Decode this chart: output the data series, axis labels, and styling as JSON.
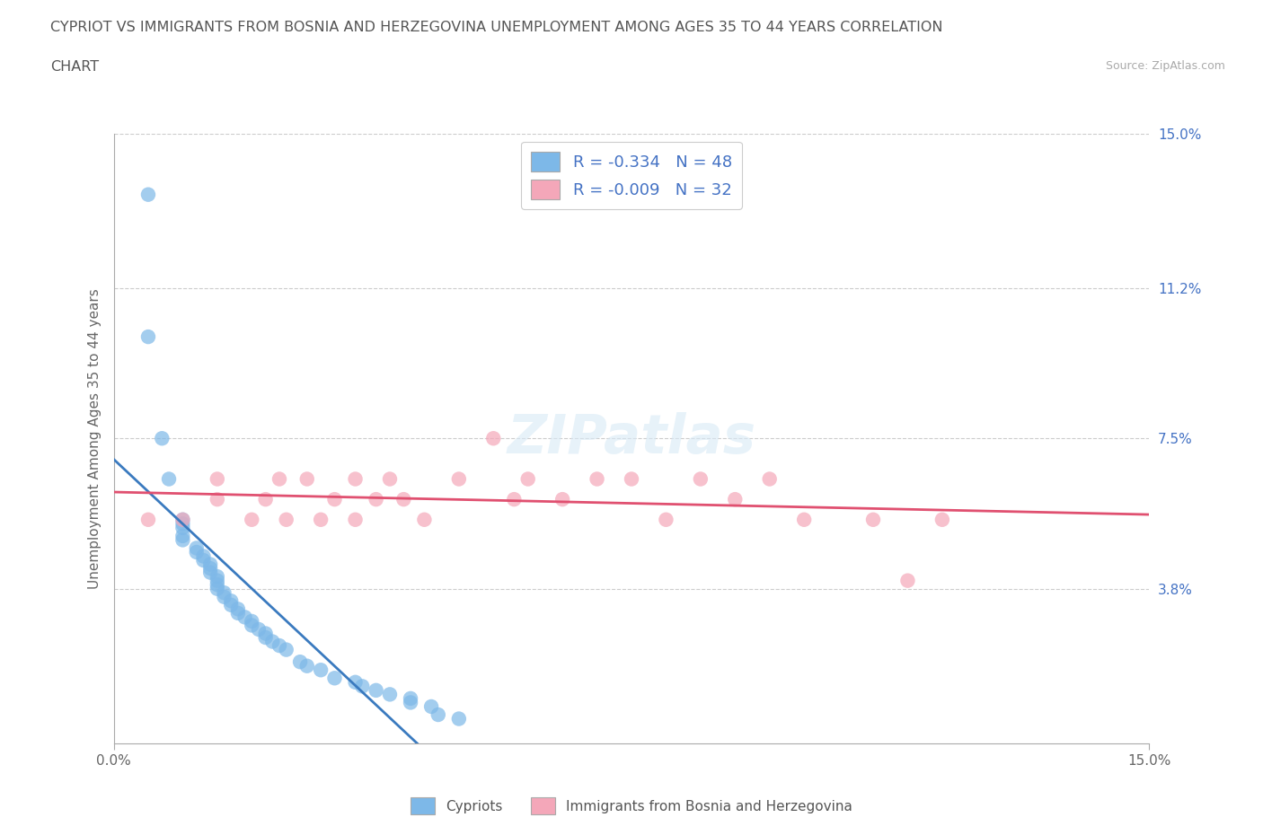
{
  "title_line1": "CYPRIOT VS IMMIGRANTS FROM BOSNIA AND HERZEGOVINA UNEMPLOYMENT AMONG AGES 35 TO 44 YEARS CORRELATION",
  "title_line2": "CHART",
  "source_text": "Source: ZipAtlas.com",
  "ylabel": "Unemployment Among Ages 35 to 44 years",
  "xlim": [
    0.0,
    0.15
  ],
  "ylim": [
    0.0,
    0.15
  ],
  "ytick_values_right": [
    0.038,
    0.075,
    0.112,
    0.15
  ],
  "ytick_labels_right": [
    "3.8%",
    "7.5%",
    "11.2%",
    "15.0%"
  ],
  "grid_color": "#cccccc",
  "background_color": "#ffffff",
  "cypriot_color": "#7db8e8",
  "bosnian_color": "#f4a7b9",
  "cypriot_line_color": "#3a7abf",
  "bosnian_line_color": "#e05070",
  "legend_label_cypriot": "R = -0.334   N = 48",
  "legend_label_bosnian": "R = -0.009   N = 32",
  "cypriot_scatter_x": [
    0.005,
    0.005,
    0.007,
    0.008,
    0.01,
    0.01,
    0.01,
    0.01,
    0.01,
    0.012,
    0.012,
    0.013,
    0.013,
    0.014,
    0.014,
    0.014,
    0.015,
    0.015,
    0.015,
    0.015,
    0.016,
    0.016,
    0.017,
    0.017,
    0.018,
    0.018,
    0.019,
    0.02,
    0.02,
    0.021,
    0.022,
    0.022,
    0.023,
    0.024,
    0.025,
    0.027,
    0.028,
    0.03,
    0.032,
    0.035,
    0.036,
    0.038,
    0.04,
    0.043,
    0.043,
    0.046,
    0.047,
    0.05
  ],
  "cypriot_scatter_y": [
    0.135,
    0.1,
    0.075,
    0.065,
    0.055,
    0.054,
    0.053,
    0.051,
    0.05,
    0.048,
    0.047,
    0.046,
    0.045,
    0.044,
    0.043,
    0.042,
    0.041,
    0.04,
    0.039,
    0.038,
    0.037,
    0.036,
    0.035,
    0.034,
    0.033,
    0.032,
    0.031,
    0.03,
    0.029,
    0.028,
    0.027,
    0.026,
    0.025,
    0.024,
    0.023,
    0.02,
    0.019,
    0.018,
    0.016,
    0.015,
    0.014,
    0.013,
    0.012,
    0.011,
    0.01,
    0.009,
    0.007,
    0.006
  ],
  "bosnian_scatter_x": [
    0.005,
    0.01,
    0.015,
    0.015,
    0.02,
    0.022,
    0.024,
    0.025,
    0.028,
    0.03,
    0.032,
    0.035,
    0.035,
    0.038,
    0.04,
    0.042,
    0.045,
    0.05,
    0.055,
    0.058,
    0.06,
    0.065,
    0.07,
    0.075,
    0.08,
    0.085,
    0.09,
    0.095,
    0.1,
    0.11,
    0.115,
    0.12
  ],
  "bosnian_scatter_y": [
    0.055,
    0.055,
    0.06,
    0.065,
    0.055,
    0.06,
    0.065,
    0.055,
    0.065,
    0.055,
    0.06,
    0.055,
    0.065,
    0.06,
    0.065,
    0.06,
    0.055,
    0.065,
    0.075,
    0.06,
    0.065,
    0.06,
    0.065,
    0.065,
    0.055,
    0.065,
    0.06,
    0.065,
    0.055,
    0.055,
    0.04,
    0.055
  ]
}
